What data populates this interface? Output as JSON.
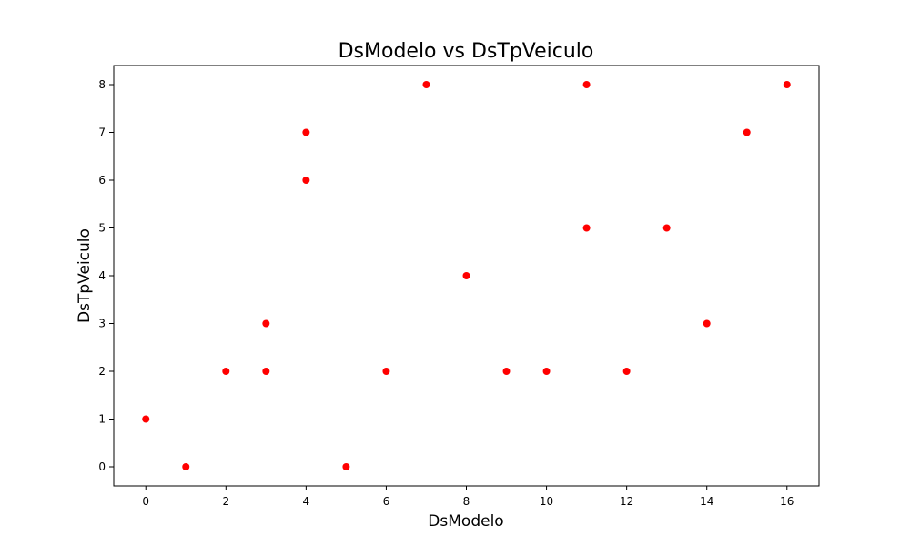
{
  "chart_data": {
    "type": "scatter",
    "title": "DsModelo vs DsTpVeiculo",
    "xlabel": "DsModelo",
    "ylabel": "DsTpVeiculo",
    "xlim": [
      -0.8,
      16.8
    ],
    "ylim": [
      -0.4,
      8.4
    ],
    "xticks": [
      0,
      2,
      4,
      6,
      8,
      10,
      12,
      14,
      16
    ],
    "yticks": [
      0,
      1,
      2,
      3,
      4,
      5,
      6,
      7,
      8
    ],
    "grid": false,
    "marker_color": "#ff0000",
    "series": [
      {
        "points": [
          {
            "x": 0,
            "y": 1
          },
          {
            "x": 1,
            "y": 0
          },
          {
            "x": 2,
            "y": 2
          },
          {
            "x": 3,
            "y": 3
          },
          {
            "x": 3,
            "y": 2
          },
          {
            "x": 4,
            "y": 7
          },
          {
            "x": 4,
            "y": 6
          },
          {
            "x": 5,
            "y": 0
          },
          {
            "x": 6,
            "y": 2
          },
          {
            "x": 7,
            "y": 8
          },
          {
            "x": 8,
            "y": 4
          },
          {
            "x": 9,
            "y": 2
          },
          {
            "x": 10,
            "y": 2
          },
          {
            "x": 11,
            "y": 8
          },
          {
            "x": 11,
            "y": 5
          },
          {
            "x": 12,
            "y": 2
          },
          {
            "x": 13,
            "y": 5
          },
          {
            "x": 14,
            "y": 3
          },
          {
            "x": 15,
            "y": 7
          },
          {
            "x": 16,
            "y": 8
          }
        ]
      }
    ]
  }
}
